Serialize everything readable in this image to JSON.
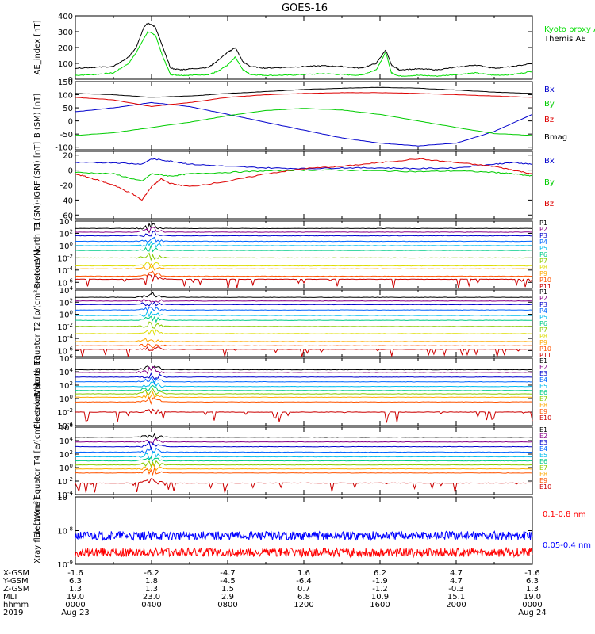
{
  "title": "GOES-16",
  "chart_data": [
    {
      "type": "line",
      "ylabel": "AE_index [nT]",
      "ylim": [
        0,
        400
      ],
      "yticks": [
        "0",
        "100",
        "200",
        "300",
        "400"
      ],
      "series": [
        {
          "name": "Kyoto proxy AE",
          "color": "#00dd00",
          "x": [
            0,
            1,
            2,
            2.8,
            3.2,
            3.8,
            4.2,
            4.6,
            5,
            5.5,
            6,
            7,
            7.5,
            8,
            8.4,
            8.8,
            9.2,
            10,
            11,
            12,
            13,
            14,
            15,
            15.8,
            16.3,
            16.6,
            17,
            18,
            19,
            20,
            21,
            22,
            23,
            24
          ],
          "y": [
            25,
            30,
            40,
            100,
            170,
            300,
            280,
            140,
            30,
            25,
            25,
            30,
            50,
            90,
            140,
            60,
            30,
            25,
            25,
            30,
            35,
            30,
            25,
            60,
            170,
            40,
            20,
            25,
            20,
            30,
            40,
            25,
            30,
            50
          ]
        },
        {
          "name": "Themis AE",
          "color": "#000000",
          "x": [
            0,
            1,
            2,
            2.8,
            3.2,
            3.6,
            3.8,
            4.2,
            4.6,
            5,
            5.5,
            6,
            7,
            7.5,
            8,
            8.4,
            8.8,
            9.2,
            10,
            11,
            12,
            13,
            14,
            15,
            15.8,
            16.3,
            16.6,
            17,
            18,
            19,
            20,
            21,
            22,
            23,
            24
          ],
          "y": [
            70,
            75,
            80,
            140,
            200,
            330,
            355,
            330,
            200,
            70,
            60,
            65,
            75,
            120,
            170,
            200,
            110,
            80,
            70,
            75,
            80,
            85,
            80,
            70,
            100,
            185,
            90,
            60,
            65,
            60,
            75,
            90,
            70,
            80,
            100
          ]
        }
      ]
    },
    {
      "type": "line",
      "ylabel": "B (SM) [nT]",
      "ylim": [
        -110,
        150
      ],
      "yticks": [
        "-100",
        "-50",
        "0",
        "50",
        "100",
        "150"
      ],
      "series": [
        {
          "name": "Bx",
          "color": "#0000cc",
          "x": [
            0,
            2,
            4,
            6,
            8,
            10,
            12,
            14,
            16,
            18,
            20,
            22,
            24
          ],
          "y": [
            35,
            50,
            70,
            55,
            25,
            -5,
            -35,
            -65,
            -85,
            -95,
            -85,
            -40,
            25
          ]
        },
        {
          "name": "By",
          "color": "#00cc00",
          "x": [
            0,
            2,
            4,
            6,
            8,
            10,
            12,
            14,
            16,
            18,
            20,
            22,
            24
          ],
          "y": [
            -55,
            -45,
            -25,
            -5,
            20,
            40,
            48,
            42,
            25,
            0,
            -25,
            -48,
            -55
          ]
        },
        {
          "name": "Bz",
          "color": "#dd0000",
          "x": [
            0,
            2,
            4,
            6,
            8,
            10,
            12,
            14,
            16,
            18,
            20,
            22,
            24
          ],
          "y": [
            90,
            80,
            55,
            70,
            90,
            100,
            105,
            108,
            108,
            105,
            100,
            95,
            90
          ]
        },
        {
          "name": "Bmag",
          "color": "#000000",
          "x": [
            0,
            2,
            4,
            6,
            8,
            10,
            12,
            14,
            16,
            18,
            20,
            22,
            24
          ],
          "y": [
            105,
            100,
            90,
            95,
            105,
            112,
            120,
            125,
            128,
            125,
            118,
            110,
            105
          ]
        }
      ]
    },
    {
      "type": "line",
      "ylabel": "B (SM)-IGRF (SM) [nT]",
      "ylim": [
        -65,
        25
      ],
      "yticks": [
        "-60",
        "-40",
        "-20",
        "0",
        "20"
      ],
      "series": [
        {
          "name": "Bx",
          "color": "#0000cc",
          "x": [
            0,
            2,
            3.5,
            4,
            5,
            6,
            8,
            10,
            12,
            14,
            16,
            18,
            20,
            22,
            23,
            24
          ],
          "y": [
            10,
            10,
            8,
            15,
            12,
            8,
            5,
            3,
            2,
            3,
            3,
            2,
            3,
            8,
            10,
            8
          ]
        },
        {
          "name": "By",
          "color": "#00cc00",
          "x": [
            0,
            2,
            3.5,
            4,
            5,
            6,
            8,
            10,
            12,
            14,
            16,
            18,
            20,
            22,
            23,
            24
          ],
          "y": [
            -3,
            -5,
            -15,
            -5,
            -8,
            -5,
            -3,
            -1,
            0,
            0,
            -1,
            -2,
            -1,
            -3,
            -5,
            -8
          ]
        },
        {
          "name": "Bz",
          "color": "#dd0000",
          "x": [
            0,
            1,
            2,
            3,
            3.5,
            4,
            4.5,
            5,
            6,
            8,
            10,
            12,
            14,
            16,
            18,
            20,
            22,
            23,
            24
          ],
          "y": [
            -5,
            -12,
            -20,
            -32,
            -40,
            -22,
            -12,
            -18,
            -22,
            -15,
            -5,
            2,
            5,
            10,
            15,
            10,
            5,
            0,
            -5
          ]
        }
      ]
    },
    {
      "type": "line",
      "ylabel": "Protons North T1",
      "scale": "log",
      "ylim": [
        -7,
        4
      ],
      "yticks": [
        "10^4",
        "10^2",
        "10^0",
        "10^-2",
        "10^-4",
        "10^-6"
      ],
      "series": [
        {
          "name": "P1",
          "color": "#000000",
          "level": 2.8
        },
        {
          "name": "P2",
          "color": "#880088",
          "level": 2.2
        },
        {
          "name": "P3",
          "color": "#0000cc",
          "level": 1.6
        },
        {
          "name": "P4",
          "color": "#0066ff",
          "level": 0.7
        },
        {
          "name": "P5",
          "color": "#00bbee",
          "level": 0.0
        },
        {
          "name": "P6",
          "color": "#00cc88",
          "level": -0.8
        },
        {
          "name": "P7",
          "color": "#88cc00",
          "level": -2.0
        },
        {
          "name": "P8",
          "color": "#dddd00",
          "level": -3.3
        },
        {
          "name": "P9",
          "color": "#ffaa00",
          "level": -3.8
        },
        {
          "name": "P10",
          "color": "#ff5500",
          "level": -5.0
        },
        {
          "name": "P11",
          "color": "#cc0000",
          "level": -5.5
        }
      ]
    },
    {
      "type": "line",
      "ylabel": "Protons Equator T2 [p/(cm²-s-sr-keV)]",
      "scale": "log",
      "ylim": [
        -7,
        4
      ],
      "yticks": [
        "10^4",
        "10^2",
        "10^0",
        "10^-2",
        "10^-4",
        "10^-6"
      ],
      "series": [
        {
          "name": "P1",
          "color": "#000000",
          "level": 2.8
        },
        {
          "name": "P2",
          "color": "#880088",
          "level": 2.2
        },
        {
          "name": "P3",
          "color": "#0000cc",
          "level": 1.6
        },
        {
          "name": "P4",
          "color": "#0066ff",
          "level": 0.7
        },
        {
          "name": "P5",
          "color": "#00bbee",
          "level": -0.2
        },
        {
          "name": "P6",
          "color": "#00cc88",
          "level": -1.0
        },
        {
          "name": "P7",
          "color": "#88cc00",
          "level": -2.0
        },
        {
          "name": "P8",
          "color": "#dddd00",
          "level": -3.2
        },
        {
          "name": "P9",
          "color": "#ffaa00",
          "level": -4.5
        },
        {
          "name": "P10",
          "color": "#ff5500",
          "level": -5.2
        },
        {
          "name": "P11",
          "color": "#cc0000",
          "level": -5.8
        }
      ]
    },
    {
      "type": "line",
      "ylabel": "Electrons North T3",
      "scale": "log",
      "ylim": [
        -4,
        6
      ],
      "yticks": [
        "10^6",
        "10^4",
        "10^2",
        "10^0",
        "10^-2",
        "10^-4"
      ],
      "series": [
        {
          "name": "E1",
          "color": "#000000",
          "level": 4.3
        },
        {
          "name": "E2",
          "color": "#880088",
          "level": 3.9
        },
        {
          "name": "E3",
          "color": "#0000cc",
          "level": 3.2
        },
        {
          "name": "E4",
          "color": "#0066ff",
          "level": 2.5
        },
        {
          "name": "E5",
          "color": "#00bbee",
          "level": 1.8
        },
        {
          "name": "E6",
          "color": "#00cc88",
          "level": 1.2
        },
        {
          "name": "E7",
          "color": "#88cc00",
          "level": 0.7
        },
        {
          "name": "E8",
          "color": "#ffaa00",
          "level": 0.2
        },
        {
          "name": "E9",
          "color": "#ff5500",
          "level": -0.5
        },
        {
          "name": "E10",
          "color": "#cc0000",
          "level": -2.0
        }
      ]
    },
    {
      "type": "line",
      "ylabel": "Electrons Equator T4 [e/(cm²-s-sr-keV)]",
      "scale": "log",
      "ylim": [
        -4,
        6
      ],
      "yticks": [
        "10^6",
        "10^4",
        "10^2",
        "10^0",
        "10^-2",
        "10^-4"
      ],
      "series": [
        {
          "name": "E1",
          "color": "#000000",
          "level": 4.5
        },
        {
          "name": "E2",
          "color": "#880088",
          "level": 3.8
        },
        {
          "name": "E3",
          "color": "#0000cc",
          "level": 3.1
        },
        {
          "name": "E4",
          "color": "#0066ff",
          "level": 2.3
        },
        {
          "name": "E5",
          "color": "#00bbee",
          "level": 1.6
        },
        {
          "name": "E6",
          "color": "#00cc88",
          "level": 1.0
        },
        {
          "name": "E7",
          "color": "#88cc00",
          "level": 0.4
        },
        {
          "name": "E8",
          "color": "#ffaa00",
          "level": -0.2
        },
        {
          "name": "E9",
          "color": "#ff5500",
          "level": -0.8
        },
        {
          "name": "E10",
          "color": "#cc0000",
          "level": -2.3
        }
      ]
    },
    {
      "type": "line",
      "ylabel": "Xray flux [W/m²]",
      "scale": "log",
      "ylim": [
        -9,
        -7
      ],
      "yticks": [
        "10^-7",
        "10^-8",
        "10^-9"
      ],
      "series": [
        {
          "name": "0.1-0.8 nm",
          "color": "#ff0000",
          "level": -8.65
        },
        {
          "name": "0.05-0.4 nm",
          "color": "#0000ff",
          "level": -8.15
        }
      ]
    }
  ],
  "orbit_table": {
    "row_labels": [
      "X-GSM",
      "Y-GSM",
      "Z-GSM",
      "MLT",
      "hhmm",
      "2019"
    ],
    "columns": [
      {
        "x-gsm": "-1.6",
        "y-gsm": "6.3",
        "z-gsm": "1.3",
        "mlt": "19.0",
        "hhmm": "0000",
        "date": "Aug 23"
      },
      {
        "x-gsm": "-6.2",
        "y-gsm": "1.8",
        "z-gsm": "1.3",
        "mlt": "23.0",
        "hhmm": "0400",
        "date": ""
      },
      {
        "x-gsm": "-4.7",
        "y-gsm": "-4.5",
        "z-gsm": "1.5",
        "mlt": "2.9",
        "hhmm": "0800",
        "date": ""
      },
      {
        "x-gsm": "1.6",
        "y-gsm": "-6.4",
        "z-gsm": "0.7",
        "mlt": "6.8",
        "hhmm": "1200",
        "date": ""
      },
      {
        "x-gsm": "6.2",
        "y-gsm": "-1.9",
        "z-gsm": "-1.2",
        "mlt": "10.9",
        "hhmm": "1600",
        "date": ""
      },
      {
        "x-gsm": "4.7",
        "y-gsm": "4.7",
        "z-gsm": "-0.3",
        "mlt": "15.1",
        "hhmm": "2000",
        "date": ""
      },
      {
        "x-gsm": "-1.6",
        "y-gsm": "6.3",
        "z-gsm": "1.3",
        "mlt": "19.0",
        "hhmm": "0000",
        "date": "Aug 24"
      }
    ]
  }
}
